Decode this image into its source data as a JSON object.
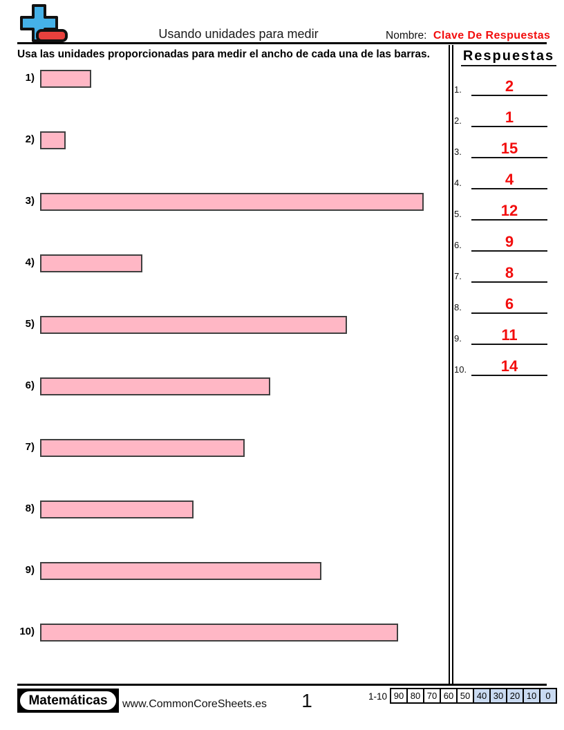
{
  "header": {
    "title": "Usando unidades para medir",
    "name_label": "Nombre:",
    "name_value": "Clave De Respuestas",
    "instruction": "Usa las unidades proporcionadas para medir el ancho de cada una de las barras."
  },
  "problems": [
    {
      "label": "1)",
      "units": 2
    },
    {
      "label": "2)",
      "units": 1
    },
    {
      "label": "3)",
      "units": 15
    },
    {
      "label": "4)",
      "units": 4
    },
    {
      "label": "5)",
      "units": 12
    },
    {
      "label": "6)",
      "units": 9
    },
    {
      "label": "7)",
      "units": 8
    },
    {
      "label": "8)",
      "units": 6
    },
    {
      "label": "9)",
      "units": 11
    },
    {
      "label": "10)",
      "units": 14
    }
  ],
  "answers": {
    "header": "Respuestas",
    "items": [
      {
        "label": "1.",
        "value": "2"
      },
      {
        "label": "2.",
        "value": "1"
      },
      {
        "label": "3.",
        "value": "15"
      },
      {
        "label": "4.",
        "value": "4"
      },
      {
        "label": "5.",
        "value": "12"
      },
      {
        "label": "6.",
        "value": "9"
      },
      {
        "label": "7.",
        "value": "8"
      },
      {
        "label": "8.",
        "value": "6"
      },
      {
        "label": "9.",
        "value": "11"
      },
      {
        "label": "10.",
        "value": "14"
      }
    ]
  },
  "footer": {
    "subject_badge": "Matemáticas",
    "website": "www.CommonCoreSheets.es",
    "page_number": "1",
    "score_label": "1-10",
    "score_cells": [
      {
        "value": "90",
        "shaded": false
      },
      {
        "value": "80",
        "shaded": false
      },
      {
        "value": "70",
        "shaded": false
      },
      {
        "value": "60",
        "shaded": false
      },
      {
        "value": "50",
        "shaded": false
      },
      {
        "value": "40",
        "shaded": true
      },
      {
        "value": "30",
        "shaded": true
      },
      {
        "value": "20",
        "shaded": true
      },
      {
        "value": "10",
        "shaded": true
      },
      {
        "value": "0",
        "shaded": true
      }
    ]
  },
  "colors": {
    "bar_fill": "#FFB7C5",
    "bar_border": "#3F3F3F",
    "accent_red": "#F20D0D",
    "shaded_cell": "#C9DAF1",
    "logo_blue": "#45B1E8",
    "logo_red": "#E8413D"
  }
}
